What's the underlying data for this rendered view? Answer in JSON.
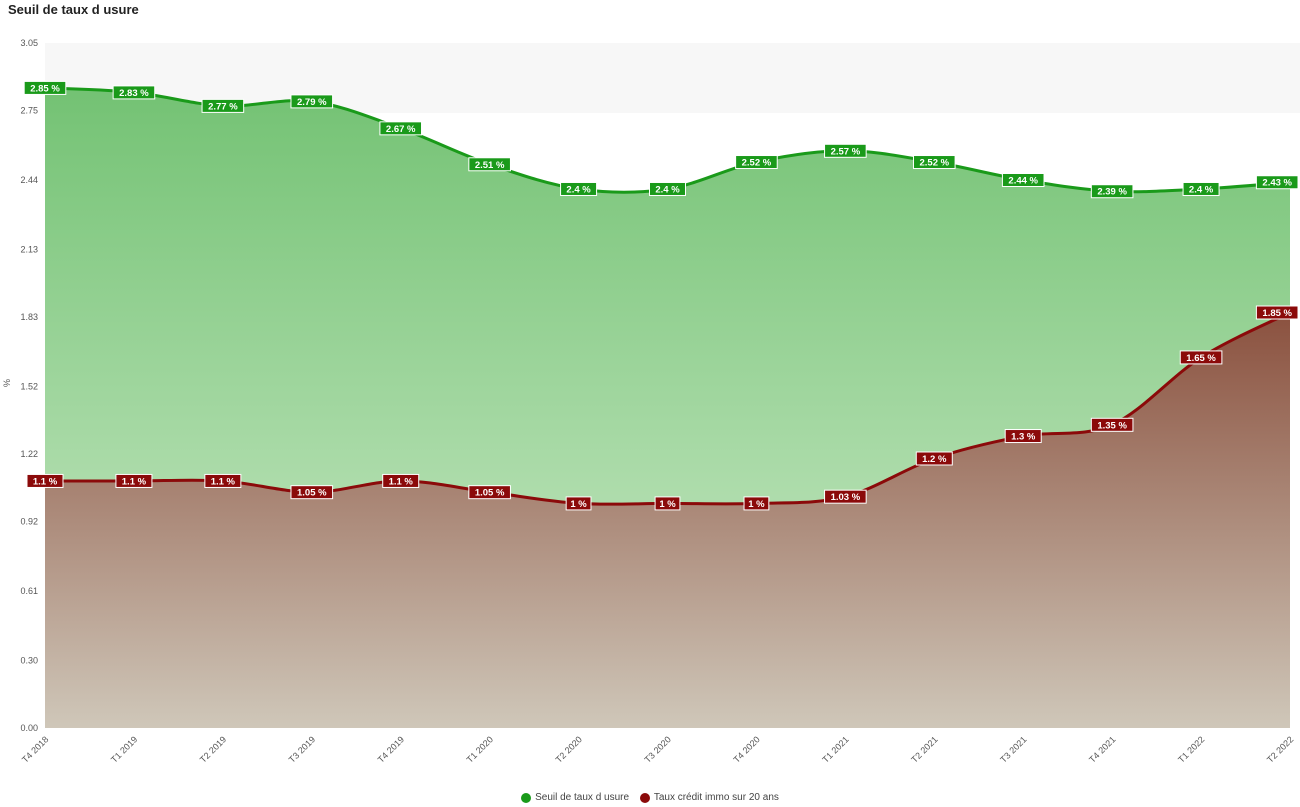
{
  "title": "Seuil de taux d usure",
  "chart_data": {
    "type": "area",
    "title": "Seuil de taux d usure",
    "ylabel": "%",
    "xlabel": "",
    "ylim": [
      0,
      3.05
    ],
    "y_ticks": [
      "0.00",
      "0.30",
      "0.61",
      "0.92",
      "1.22",
      "1.52",
      "1.83",
      "2.13",
      "2.44",
      "2.75",
      "3.05"
    ],
    "categories": [
      "T4 2018",
      "T1 2019",
      "T2 2019",
      "T3 2019",
      "T4 2019",
      "T1 2020",
      "T2 2020",
      "T3 2020",
      "T4 2020",
      "T1 2021",
      "T2 2021",
      "T3 2021",
      "T4 2021",
      "T1 2022",
      "T2 2022"
    ],
    "series": [
      {
        "name": "Seuil de taux d usure",
        "color": "#1a9a1a",
        "values": [
          2.85,
          2.83,
          2.77,
          2.79,
          2.67,
          2.51,
          2.4,
          2.4,
          2.52,
          2.57,
          2.52,
          2.44,
          2.39,
          2.4,
          2.43
        ],
        "labels": [
          "2.85 %",
          "2.83 %",
          "2.77 %",
          "2.79 %",
          "2.67 %",
          "2.51 %",
          "2.4 %",
          "2.4 %",
          "2.52 %",
          "2.57 %",
          "2.52 %",
          "2.44 %",
          "2.39 %",
          "2.4 %",
          "2.43 %"
        ]
      },
      {
        "name": "Taux crédit immo sur 20 ans",
        "color": "#8b0a0a",
        "values": [
          1.1,
          1.1,
          1.1,
          1.05,
          1.1,
          1.05,
          1.0,
          1.0,
          1.0,
          1.03,
          1.2,
          1.3,
          1.35,
          1.65,
          1.85
        ],
        "labels": [
          "1.1 %",
          "1.1 %",
          "1.1 %",
          "1.05 %",
          "1.1 %",
          "1.05 %",
          "1 %",
          "1 %",
          "1 %",
          "1.03 %",
          "1.2 %",
          "1.3 %",
          "1.35 %",
          "1.65 %",
          "1.85 %"
        ]
      }
    ],
    "legend": "bottom-center",
    "grid": false
  }
}
